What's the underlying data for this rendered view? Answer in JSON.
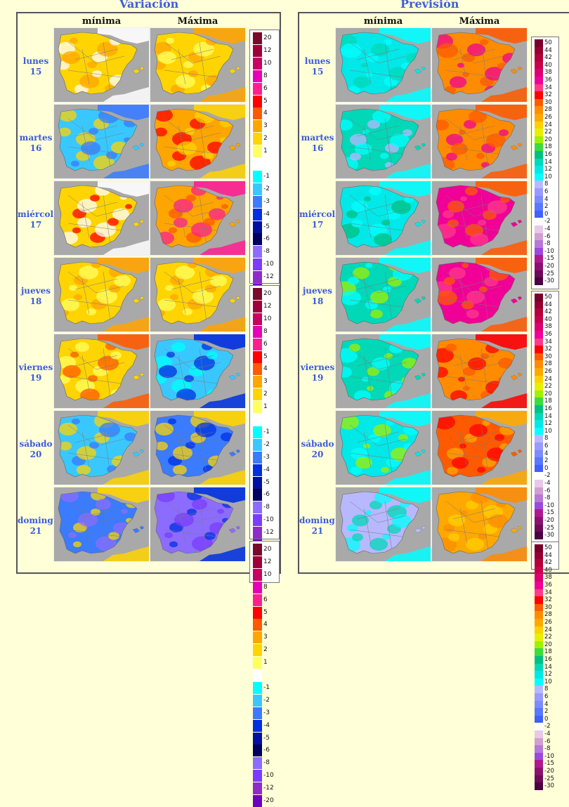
{
  "titles": {
    "variation": "Variación",
    "forecast": "Previsión"
  },
  "columns": {
    "min": "mínima",
    "max": "Máxima"
  },
  "days": [
    {
      "name": "lunes",
      "num": "15"
    },
    {
      "name": "martes",
      "num": "16"
    },
    {
      "name": "miércoles",
      "num": "17"
    },
    {
      "name": "jueves",
      "num": "18"
    },
    {
      "name": "viernes",
      "num": "19"
    },
    {
      "name": "sábado",
      "num": "20"
    },
    {
      "name": "domingo",
      "num": "21"
    }
  ],
  "variation_legend": [
    {
      "label": "20",
      "color": "#7a0a2a"
    },
    {
      "label": "12",
      "color": "#a0003a"
    },
    {
      "label": "10",
      "color": "#c80060"
    },
    {
      "label": "8",
      "color": "#e800b8"
    },
    {
      "label": "6",
      "color": "#ff1f8f"
    },
    {
      "label": "5",
      "color": "#ff0000"
    },
    {
      "label": "4",
      "color": "#ff5a00"
    },
    {
      "label": "3",
      "color": "#ffa500"
    },
    {
      "label": "2",
      "color": "#ffd400"
    },
    {
      "label": "1",
      "color": "#ffff60"
    },
    {
      "label": "",
      "color": "#ffffff"
    },
    {
      "label": "-1",
      "color": "#00ffff"
    },
    {
      "label": "-2",
      "color": "#38c8ff"
    },
    {
      "label": "-3",
      "color": "#3a7bff"
    },
    {
      "label": "-4",
      "color": "#0030e0"
    },
    {
      "label": "-5",
      "color": "#0010a0"
    },
    {
      "label": "-6",
      "color": "#000060"
    },
    {
      "label": "-8",
      "color": "#8c6cff"
    },
    {
      "label": "-10",
      "color": "#7a3cff"
    },
    {
      "label": "-12",
      "color": "#8e2cc8"
    },
    {
      "label": "-20",
      "color": "#6e00c0"
    }
  ],
  "forecast_legend": [
    {
      "label": "50",
      "color": "#78002a"
    },
    {
      "label": "44",
      "color": "#96002e"
    },
    {
      "label": "42",
      "color": "#b40038"
    },
    {
      "label": "40",
      "color": "#c8004c"
    },
    {
      "label": "38",
      "color": "#dc0070"
    },
    {
      "label": "36",
      "color": "#f00096"
    },
    {
      "label": "34",
      "color": "#ff3a8a"
    },
    {
      "label": "32",
      "color": "#ff0000"
    },
    {
      "label": "30",
      "color": "#ff5a00"
    },
    {
      "label": "28",
      "color": "#ff8c00"
    },
    {
      "label": "26",
      "color": "#ffa800"
    },
    {
      "label": "24",
      "color": "#ffd000"
    },
    {
      "label": "22",
      "color": "#e6f000"
    },
    {
      "label": "20",
      "color": "#a0f000"
    },
    {
      "label": "18",
      "color": "#3cdc3c"
    },
    {
      "label": "16",
      "color": "#00c080"
    },
    {
      "label": "14",
      "color": "#00d8b8"
    },
    {
      "label": "12",
      "color": "#00e8e8"
    },
    {
      "label": "10",
      "color": "#00ffff"
    },
    {
      "label": "8",
      "color": "#b8b8ff"
    },
    {
      "label": "6",
      "color": "#9a9aff"
    },
    {
      "label": "4",
      "color": "#7a8cff"
    },
    {
      "label": "2",
      "color": "#5a78ff"
    },
    {
      "label": "0",
      "color": "#4060ff"
    },
    {
      "label": "-2",
      "color": "#ffffff"
    },
    {
      "label": "-4",
      "color": "#e8c8e8"
    },
    {
      "label": "-6",
      "color": "#d0a0d0"
    },
    {
      "label": "-8",
      "color": "#b878d8"
    },
    {
      "label": "-10",
      "color": "#9a48e0"
    },
    {
      "label": "-15",
      "color": "#b01890"
    },
    {
      "label": "-20",
      "color": "#8c1070"
    },
    {
      "label": "-25",
      "color": "#6e0a58"
    },
    {
      "label": "-30",
      "color": "#4a0040"
    }
  ],
  "map_colors": {
    "sea": "#a9a9a9",
    "land": "#ffffff",
    "border": "#888888"
  },
  "var_maps": [
    {
      "min": [
        "#ffd400",
        "#ffa500",
        "#ffffff"
      ],
      "max": [
        "#ffd400",
        "#ffff60",
        "#ffa500"
      ]
    },
    {
      "min": [
        "#38c8ff",
        "#ffd400",
        "#3a7bff"
      ],
      "max": [
        "#ffa500",
        "#ff0000",
        "#ffd400"
      ]
    },
    {
      "min": [
        "#ffd400",
        "#ff0000",
        "#ffffff"
      ],
      "max": [
        "#ffa500",
        "#ff5a00",
        "#ff1f8f"
      ]
    },
    {
      "min": [
        "#ffd400",
        "#ffff60",
        "#ffa500"
      ],
      "max": [
        "#ffd400",
        "#ffff60",
        "#ffa500"
      ]
    },
    {
      "min": [
        "#ffd400",
        "#ffff60",
        "#ff5a00"
      ],
      "max": [
        "#38c8ff",
        "#00ffff",
        "#0030e0"
      ]
    },
    {
      "min": [
        "#38c8ff",
        "#3a7bff",
        "#ffd400"
      ],
      "max": [
        "#3a7bff",
        "#0030e0",
        "#ffd400"
      ]
    },
    {
      "min": [
        "#3a7bff",
        "#8c6cff",
        "#ffd400"
      ],
      "max": [
        "#8c6cff",
        "#7a3cff",
        "#0030e0"
      ]
    }
  ],
  "fc_maps": [
    {
      "min": [
        "#00e8e8",
        "#00d8b8",
        "#00ffff"
      ],
      "max": [
        "#ff8c00",
        "#f00096",
        "#ff5a00"
      ]
    },
    {
      "min": [
        "#00d8b8",
        "#b8b8ff",
        "#00ffff"
      ],
      "max": [
        "#ff8c00",
        "#f00096",
        "#ff5a00"
      ]
    },
    {
      "min": [
        "#00e8e8",
        "#00c080",
        "#00ffff"
      ],
      "max": [
        "#f00096",
        "#ff3a8a",
        "#ff5a00"
      ]
    },
    {
      "min": [
        "#00d8b8",
        "#a0f000",
        "#00ffff"
      ],
      "max": [
        "#f00096",
        "#ff3a8a",
        "#ff5a00"
      ]
    },
    {
      "min": [
        "#00d8b8",
        "#a0f000",
        "#00ffff"
      ],
      "max": [
        "#ff8c00",
        "#ff5a00",
        "#ff0000"
      ]
    },
    {
      "min": [
        "#00e8e8",
        "#a0f000",
        "#00ffff"
      ],
      "max": [
        "#ff5a00",
        "#ff0000",
        "#ffa800"
      ]
    },
    {
      "min": [
        "#b8b8ff",
        "#00d8b8",
        "#00ffff"
      ],
      "max": [
        "#ffa800",
        "#ffd000",
        "#ff8c00"
      ]
    }
  ]
}
